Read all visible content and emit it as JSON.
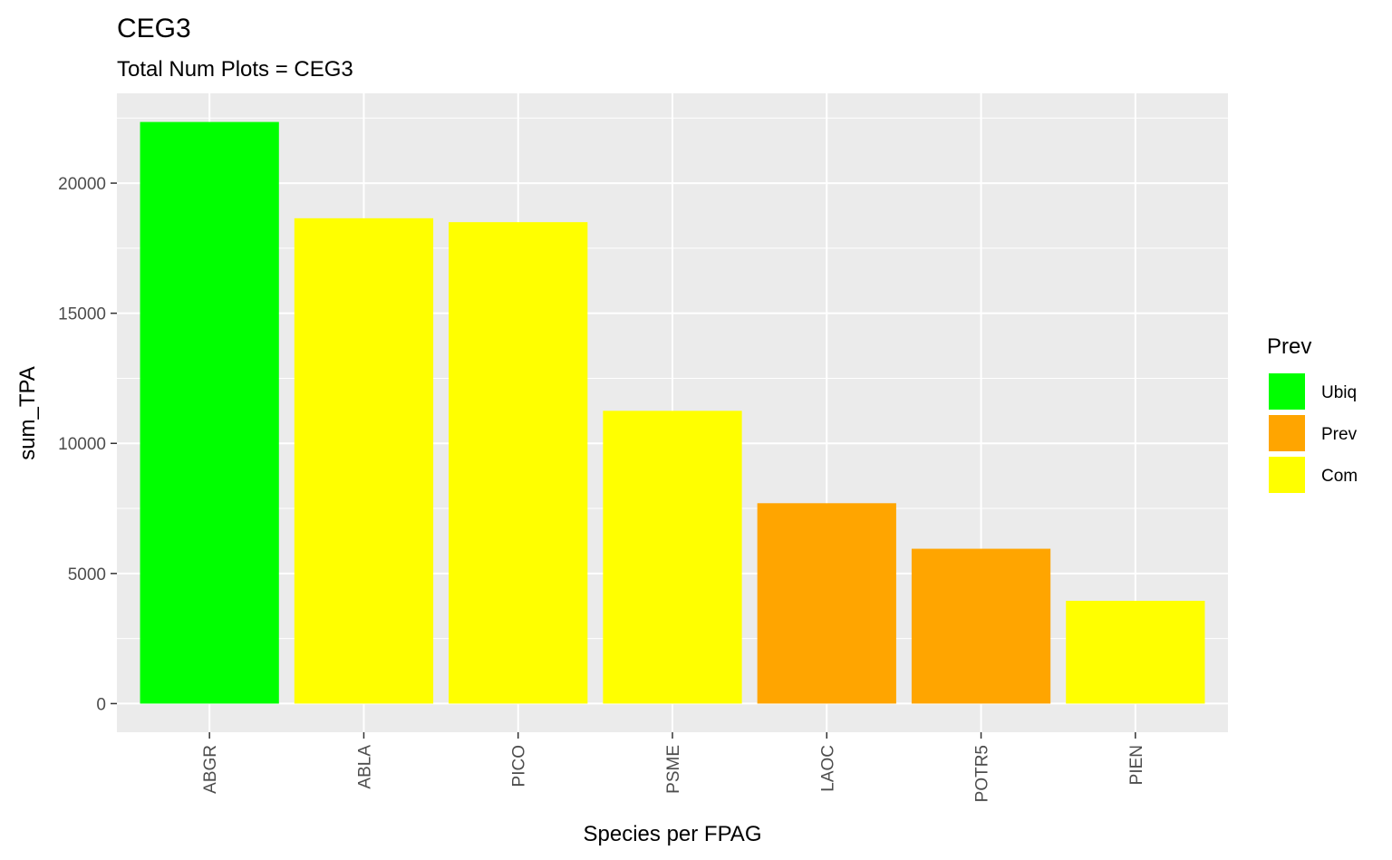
{
  "chart_data": {
    "type": "bar",
    "title": "CEG3",
    "subtitle": "Total Num Plots = CEG3",
    "xlabel": "Species per FPAG",
    "ylabel": "sum_TPA",
    "categories": [
      "ABGR",
      "ABLA",
      "PICO",
      "PSME",
      "LAOC",
      "POTR5",
      "PIEN"
    ],
    "values": [
      22350,
      18650,
      18500,
      11250,
      7700,
      5950,
      3950
    ],
    "groups": [
      "Ubiq",
      "Com",
      "Com",
      "Com",
      "Prev",
      "Prev",
      "Com"
    ],
    "yticks": [
      0,
      5000,
      10000,
      15000,
      20000
    ],
    "ylim": [
      -1100,
      23450
    ],
    "grid": true,
    "legend": {
      "title": "Prev",
      "placement": "right",
      "entries": [
        {
          "label": "Ubiq",
          "color": "#00ff00"
        },
        {
          "label": "Prev",
          "color": "#ffa500"
        },
        {
          "label": "Com",
          "color": "#ffff00"
        }
      ]
    },
    "colors": {
      "Ubiq": "#00ff00",
      "Prev": "#ffa500",
      "Com": "#ffff00",
      "panel": "#ebebeb",
      "grid": "#ffffff"
    }
  }
}
